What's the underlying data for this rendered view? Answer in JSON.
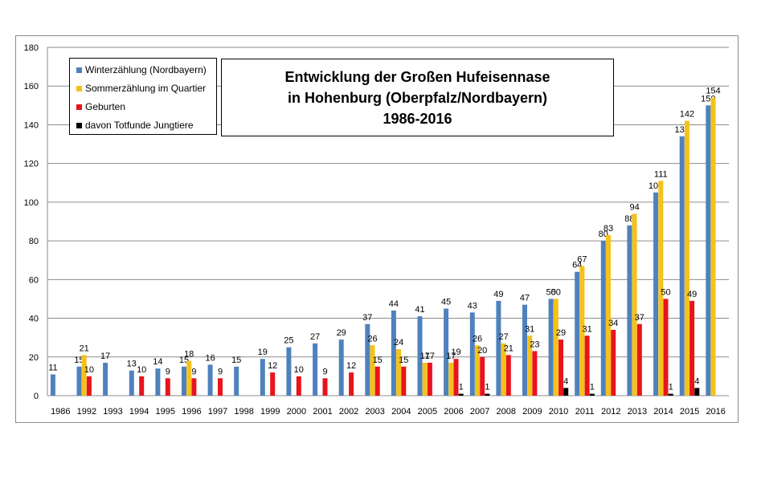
{
  "chart_data": {
    "type": "bar",
    "title": [
      "Entwicklung  der Großen Hufeisennase",
      "in Hohenburg (Oberpfalz/Nordbayern)",
      "1986-2016"
    ],
    "categories": [
      "1986",
      "1992",
      "1993",
      "1994",
      "1995",
      "1996",
      "1997",
      "1998",
      "1999",
      "2000",
      "2001",
      "2002",
      "2003",
      "2004",
      "2005",
      "2006",
      "2007",
      "2008",
      "2009",
      "2010",
      "2011",
      "2012",
      "2013",
      "2014",
      "2015",
      "2016"
    ],
    "ylim": [
      0,
      180
    ],
    "yticks": [
      0,
      20,
      40,
      60,
      80,
      100,
      120,
      140,
      160,
      180
    ],
    "grid": true,
    "legend_position": "top-left",
    "series": [
      {
        "name": "Winterzählung (Nordbayern)",
        "color": "#4f81bd",
        "values": [
          11,
          15,
          17,
          13,
          14,
          15,
          16,
          15,
          19,
          25,
          27,
          29,
          37,
          44,
          41,
          45,
          43,
          49,
          47,
          50,
          64,
          80,
          88,
          105,
          134,
          150
        ]
      },
      {
        "name": "Sommerzählung im Quartier",
        "color": "#f5c11b",
        "values": [
          null,
          21,
          null,
          null,
          null,
          18,
          null,
          null,
          null,
          null,
          null,
          null,
          26,
          24,
          17,
          17,
          26,
          27,
          31,
          50,
          67,
          83,
          94,
          111,
          142,
          154
        ]
      },
      {
        "name": "Geburten",
        "color": "#e8141c",
        "values": [
          null,
          10,
          null,
          10,
          9,
          9,
          9,
          null,
          12,
          10,
          9,
          12,
          15,
          15,
          17,
          19,
          20,
          21,
          23,
          29,
          31,
          34,
          37,
          50,
          49,
          null
        ]
      },
      {
        "name": "davon Totfunde Jungtiere",
        "color": "#000000",
        "values": [
          null,
          null,
          null,
          null,
          null,
          null,
          null,
          null,
          null,
          null,
          null,
          null,
          null,
          null,
          null,
          1,
          1,
          null,
          null,
          4,
          1,
          null,
          null,
          1,
          4,
          null
        ]
      }
    ]
  }
}
